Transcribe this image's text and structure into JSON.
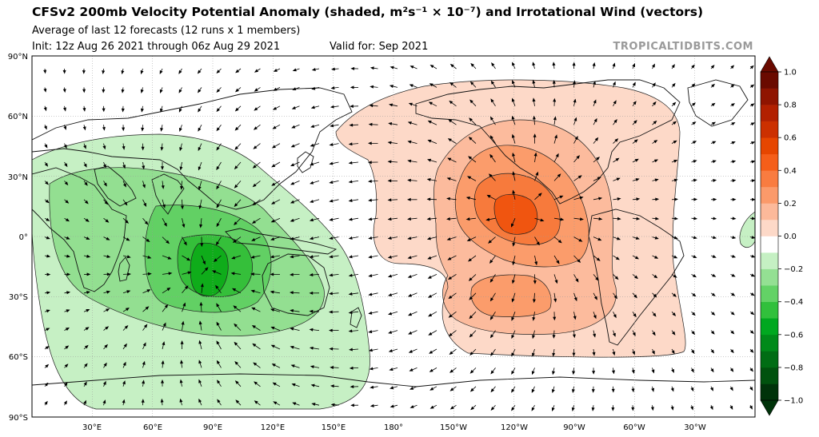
{
  "header": {
    "title": "CFSv2 200mb Velocity Potential Anomaly (shaded, m²s⁻¹ × 10⁻⁷) and Irrotational Wind (vectors)",
    "subtitle_line1": "Average of last 12 forecasts (12 runs x 1 members)",
    "init_text": "Init: 12z Aug 26 2021 through 06z Aug 29 2021",
    "valid_text": "Valid for: Sep 2021",
    "brand": "TROPICALTIDBITS.COM"
  },
  "map": {
    "projection": "equirectangular",
    "central_longitude": 180,
    "lon_range": [
      0,
      360
    ],
    "lat_range": [
      -90,
      90
    ],
    "lat_labels": [
      "90°N",
      "60°N",
      "30°N",
      "0°",
      "30°S",
      "60°S",
      "90°S"
    ],
    "lon_labels": [
      "30°E",
      "60°E",
      "90°E",
      "120°E",
      "150°E",
      "180°",
      "150°W",
      "120°W",
      "90°W",
      "60°W",
      "30°W"
    ],
    "gridlines": true,
    "field": "200mb velocity potential anomaly",
    "vectors": "irrotational wind"
  },
  "colorbar": {
    "tick_labels": [
      "1.0",
      "0.8",
      "0.6",
      "0.4",
      "0.2",
      "0.0",
      "−0.2",
      "−0.4",
      "−0.6",
      "−0.8",
      "−1.0"
    ],
    "levels": [
      -1.0,
      -0.9,
      -0.8,
      -0.7,
      -0.6,
      -0.5,
      -0.4,
      -0.3,
      -0.2,
      -0.1,
      0.1,
      0.2,
      0.3,
      0.4,
      0.5,
      0.6,
      0.7,
      0.8,
      0.9,
      1.0
    ],
    "colors_low": [
      "#00330a",
      "#00520e",
      "#006d14",
      "#008a1a",
      "#00a820",
      "#31c03c",
      "#63d266",
      "#94e093",
      "#c5f0c3"
    ],
    "color_zero": "#ffffff",
    "colors_high": [
      "#fdd9c8",
      "#fcb99a",
      "#fb9a6a",
      "#f97c40",
      "#f55e19",
      "#e64600",
      "#cc3000",
      "#b22000",
      "#8f1400",
      "#6a0a00"
    ]
  },
  "colors": {
    "green_1": "#c6f0c4",
    "green_2": "#93df91",
    "green_3": "#62d064",
    "green_4": "#35bf3a",
    "green_5": "#0fac1a",
    "orange_1": "#fdd9c8",
    "orange_2": "#fcbb9d",
    "orange_3": "#fb9c6b",
    "orange_4": "#f77a3c",
    "orange_5": "#f05510"
  }
}
